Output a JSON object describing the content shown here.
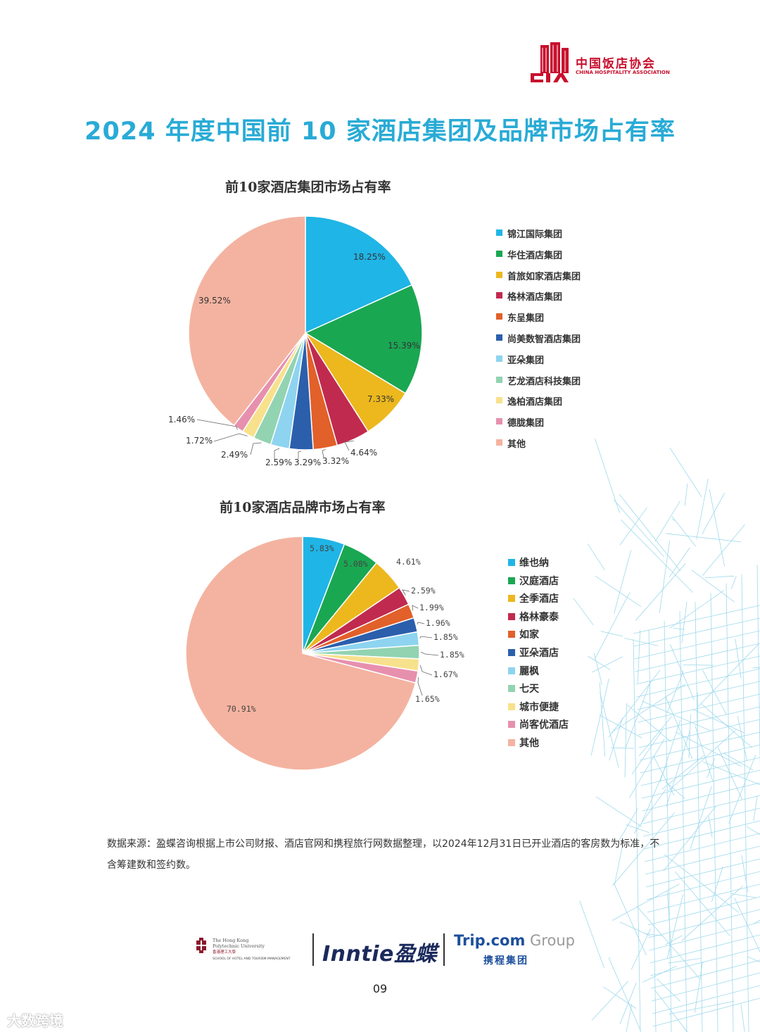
{
  "header": {
    "logo_cn": "中国饭店协会",
    "logo_en": "CHINA HOSPITALITY ASSOCIATION"
  },
  "page_title": "2024 年度中国前 10 家酒店集团及品牌市场占有率",
  "colors": {
    "title": "#29abd6",
    "logo_red": "#c8102e",
    "palette": [
      "#1fb5e6",
      "#1aa752",
      "#ecb81e",
      "#c12a4f",
      "#e2602a",
      "#2b5fac",
      "#8ed4f0",
      "#92d3b2",
      "#f8e18c",
      "#e790ae",
      "#f4b3a0"
    ]
  },
  "chart_data": [
    {
      "type": "pie",
      "title": "前10家酒店集团市场占有率",
      "categories": [
        "锦江国际集团",
        "华住酒店集团",
        "首旅如家酒店集团",
        "格林酒店集团",
        "东呈集团",
        "尚美数智酒店集团",
        "亚朵集团",
        "艺龙酒店科技集团",
        "逸柏酒店集团",
        "德胧集团",
        "其他"
      ],
      "values": [
        18.25,
        15.39,
        7.33,
        4.64,
        3.32,
        3.29,
        2.59,
        2.49,
        1.72,
        1.46,
        39.52
      ],
      "value_labels": [
        "18.25%",
        "15.39%",
        "7.33%",
        "4.64%",
        "3.32%",
        "3.29%",
        "2.59%",
        "2.49%",
        "1.72%",
        "1.46%",
        "39.52%"
      ],
      "legend": "right"
    },
    {
      "type": "pie",
      "title": "前10家酒店品牌市场占有率",
      "categories": [
        "维也纳",
        "汉庭酒店",
        "全季酒店",
        "格林豪泰",
        "如家",
        "亚朵酒店",
        "麗枫",
        "七天",
        "城市便捷",
        "尚客优酒店",
        "其他"
      ],
      "values": [
        5.83,
        5.08,
        4.61,
        2.59,
        1.99,
        1.96,
        1.85,
        1.85,
        1.67,
        1.65,
        70.91
      ],
      "value_labels": [
        "5.83%",
        "5.08%",
        "4.61%",
        "2.59%",
        "1.99%",
        "1.96%",
        "1.85%",
        "1.85%",
        "1.67%",
        "1.65%",
        "70.91%"
      ],
      "legend": "right"
    }
  ],
  "source_note": "数据来源：盈蝶咨询根据上市公司财报、酒店官网和携程旅行网数据整理，以2024年12月31日已开业酒店的客房数为标准，不含筹建数和签约数。",
  "footer": {
    "polyu_line1": "The Hong Kong",
    "polyu_line2": "Polytechnic University",
    "polyu_line3": "香港理工大學",
    "polyu_line4": "SCHOOL OF HOTEL AND TOURISM MANAGEMENT",
    "inntie": "Inntie盈蝶",
    "trip_brand": "Trip.com",
    "trip_group": " Group",
    "trip_cn": "携程集团"
  },
  "page_number": "09",
  "watermark": "大数跨境"
}
